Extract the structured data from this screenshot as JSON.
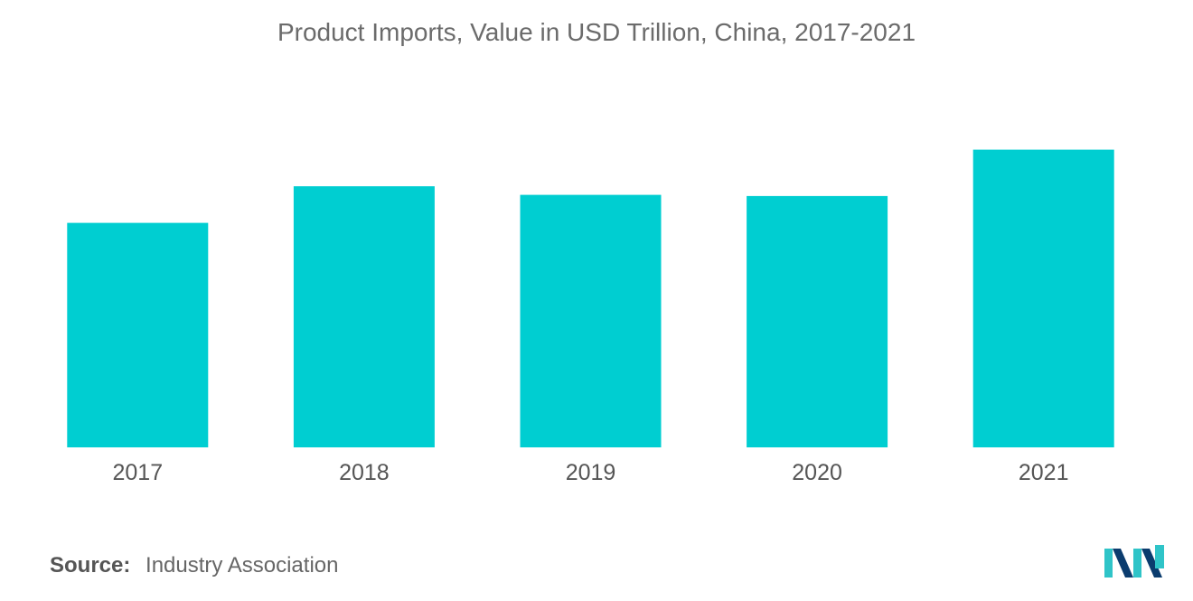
{
  "chart_data": {
    "type": "bar",
    "title": "Product Imports, Value in USD Trillion, China, 2017-2021",
    "categories": [
      "2017",
      "2018",
      "2019",
      "2020",
      "2021"
    ],
    "values": [
      1.84,
      2.14,
      2.07,
      2.06,
      2.44
    ],
    "ylim": [
      0,
      3.0
    ],
    "xlabel": "",
    "ylabel": "",
    "grid": false,
    "bar_color": "#00ced1"
  },
  "source": {
    "label": "Source:",
    "text": "Industry Association"
  },
  "logo": {
    "icon": "mordor-intelligence-logo-icon",
    "colors": [
      "#0b3c6e",
      "#2fc4c8"
    ]
  }
}
